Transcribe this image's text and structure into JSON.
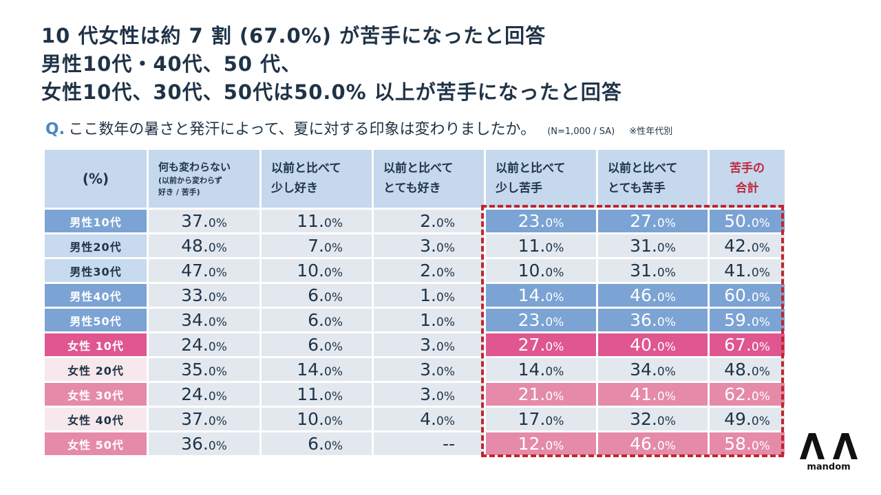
{
  "headline": {
    "line1": "10 代女性は約 7 割 (67.0%) が苦手になったと回答",
    "line2": "男性10代・40代、50 代、",
    "line3": "女性10代、30代、50代は50.0% 以上が苦手になったと回答"
  },
  "question": {
    "mark": "Q.",
    "text": "ここ数年の暑さと発汗によって、夏に対する印象は変わりましたか。",
    "sample": "(N=1,000 / SA)",
    "note": "※性年代別"
  },
  "colors": {
    "male_dark": "#7ba3d4",
    "male_light": "#c7daef",
    "female_dark": "#df5690",
    "female_mid": "#e58aa9",
    "female_light": "#f6e8ec",
    "header": "#c5d8ee",
    "highlight_border": "#c0262d",
    "total_header": "#c0283a"
  },
  "chart_data": {
    "type": "table",
    "title": "ここ数年の暑さと発汗によって、夏に対する印象は変わりましたか。",
    "corner_label": "(%)",
    "columns": [
      {
        "main": "何も変わらない",
        "sub1": "(以前から変わらず",
        "sub2": "好き / 苦手)"
      },
      {
        "line1": "以前と比べて",
        "line2": "少し好き"
      },
      {
        "line1": "以前と比べて",
        "line2": "とても好き"
      },
      {
        "line1": "以前と比べて",
        "line2": "少し苦手"
      },
      {
        "line1": "以前と比べて",
        "line2": "とても苦手"
      },
      {
        "line1": "苦手の",
        "line2": "合計"
      }
    ],
    "rows": [
      {
        "label": "男性10代",
        "style": "m-dark",
        "values": [
          [
            "37.",
            "0%"
          ],
          [
            "11.",
            "0%"
          ],
          [
            "2.",
            "0%"
          ],
          [
            "23.",
            "0%"
          ],
          [
            "27.",
            "0%"
          ],
          [
            "50.",
            "0%"
          ]
        ]
      },
      {
        "label": "男性20代",
        "style": "m-light",
        "values": [
          [
            "48.",
            "0%"
          ],
          [
            "7.",
            "0%"
          ],
          [
            "3.",
            "0%"
          ],
          [
            "11.",
            "0%"
          ],
          [
            "31.",
            "0%"
          ],
          [
            "42.",
            "0%"
          ]
        ]
      },
      {
        "label": "男性30代",
        "style": "m-light",
        "values": [
          [
            "47.",
            "0%"
          ],
          [
            "10.",
            "0%"
          ],
          [
            "2.",
            "0%"
          ],
          [
            "10.",
            "0%"
          ],
          [
            "31.",
            "0%"
          ],
          [
            "41.",
            "0%"
          ]
        ]
      },
      {
        "label": "男性40代",
        "style": "m-dark",
        "values": [
          [
            "33.",
            "0%"
          ],
          [
            "6.",
            "0%"
          ],
          [
            "1.",
            "0%"
          ],
          [
            "14.",
            "0%"
          ],
          [
            "46.",
            "0%"
          ],
          [
            "60.",
            "0%"
          ]
        ]
      },
      {
        "label": "男性50代",
        "style": "m-dark",
        "values": [
          [
            "34.",
            "0%"
          ],
          [
            "6.",
            "0%"
          ],
          [
            "1.",
            "0%"
          ],
          [
            "23.",
            "0%"
          ],
          [
            "36.",
            "0%"
          ],
          [
            "59.",
            "0%"
          ]
        ]
      },
      {
        "label": "女性 10代",
        "style": "f-dark",
        "values": [
          [
            "24.",
            "0%"
          ],
          [
            "6.",
            "0%"
          ],
          [
            "3.",
            "0%"
          ],
          [
            "27.",
            "0%"
          ],
          [
            "40.",
            "0%"
          ],
          [
            "67.",
            "0%"
          ]
        ]
      },
      {
        "label": "女性 20代",
        "style": "f-light",
        "values": [
          [
            "35.",
            "0%"
          ],
          [
            "14.",
            "0%"
          ],
          [
            "3.",
            "0%"
          ],
          [
            "14.",
            "0%"
          ],
          [
            "34.",
            "0%"
          ],
          [
            "48.",
            "0%"
          ]
        ]
      },
      {
        "label": "女性 30代",
        "style": "f-mid",
        "values": [
          [
            "24.",
            "0%"
          ],
          [
            "11.",
            "0%"
          ],
          [
            "3.",
            "0%"
          ],
          [
            "21.",
            "0%"
          ],
          [
            "41.",
            "0%"
          ],
          [
            "62.",
            "0%"
          ]
        ]
      },
      {
        "label": "女性 40代",
        "style": "f-light",
        "values": [
          [
            "37.",
            "0%"
          ],
          [
            "10.",
            "0%"
          ],
          [
            "4.",
            "0%"
          ],
          [
            "17.",
            "0%"
          ],
          [
            "32.",
            "0%"
          ],
          [
            "49.",
            "0%"
          ]
        ]
      },
      {
        "label": "女性 50代",
        "style": "f-mid",
        "values": [
          [
            "36.",
            "0%"
          ],
          [
            "6.",
            "0%"
          ],
          [
            "--",
            ""
          ],
          [
            "12.",
            "0%"
          ],
          [
            "46.",
            "0%"
          ],
          [
            "58.",
            "0%"
          ]
        ]
      }
    ]
  },
  "logo": {
    "icon": "mandom-double-chevron-logo",
    "text": "mandom"
  }
}
